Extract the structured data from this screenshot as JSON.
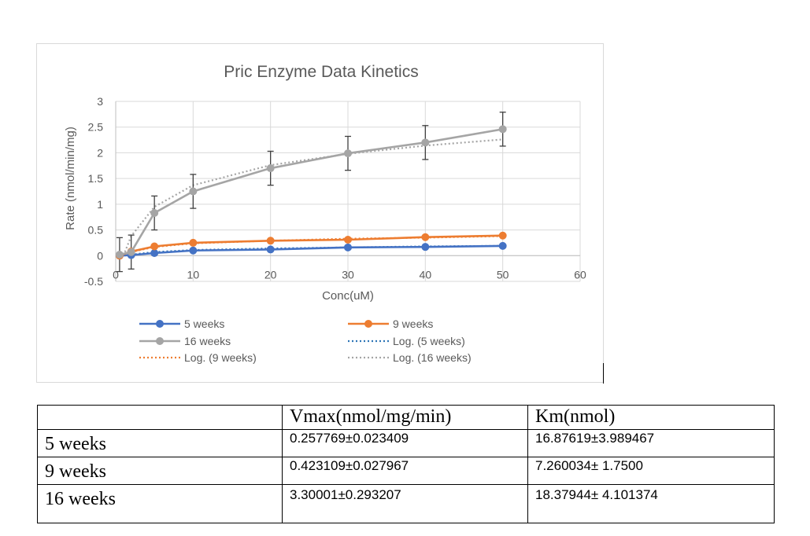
{
  "chart_data": {
    "type": "scatter",
    "title": "Pric Enzyme Data Kinetics",
    "xlabel": "Conc(uM)",
    "ylabel": "Rate (nmol/min/mg)",
    "xlim": [
      0,
      60
    ],
    "ylim": [
      -0.5,
      3
    ],
    "xticks": [
      0,
      10,
      20,
      30,
      40,
      50,
      60
    ],
    "yticks": [
      -0.5,
      0,
      0.5,
      1,
      1.5,
      2,
      2.5,
      3
    ],
    "xtick_labels": [
      "0",
      "10",
      "20",
      "30",
      "40",
      "50",
      "60"
    ],
    "ytick_labels": [
      "-0.5",
      "0",
      "0.5",
      "1",
      "1.5",
      "2",
      "2.5",
      "3"
    ],
    "grid": true,
    "legend_position": "bottom",
    "series": [
      {
        "name": "5 weeks",
        "color": "#4472c4",
        "x": [
          0.5,
          2,
          5,
          10,
          20,
          30,
          40,
          50
        ],
        "y": [
          0.0,
          0.01,
          0.05,
          0.1,
          0.12,
          0.16,
          0.17,
          0.19
        ]
      },
      {
        "name": "9 weeks",
        "color": "#ed7d31",
        "x": [
          0.5,
          2,
          5,
          10,
          20,
          30,
          40,
          50
        ],
        "y": [
          0.0,
          0.08,
          0.18,
          0.25,
          0.29,
          0.31,
          0.36,
          0.39
        ]
      },
      {
        "name": "16 weeks",
        "color": "#a5a5a5",
        "x": [
          0.5,
          2,
          5,
          10,
          20,
          30,
          40,
          50
        ],
        "y": [
          0.02,
          0.07,
          0.83,
          1.25,
          1.7,
          1.99,
          2.2,
          2.46
        ],
        "error": [
          0.33,
          0.33,
          0.33,
          0.33,
          0.33,
          0.33,
          0.33,
          0.33
        ]
      }
    ],
    "trendlines": [
      {
        "name": "Log. (5 weeks)",
        "type": "log",
        "color": "#2e75b6",
        "of": "5 weeks",
        "x": [
          2,
          5,
          10,
          20,
          30,
          40,
          50
        ],
        "y": [
          0.02,
          0.07,
          0.11,
          0.14,
          0.16,
          0.18,
          0.19
        ]
      },
      {
        "name": "Log. (9 weeks)",
        "type": "log",
        "color": "#ed7d31",
        "of": "9 weeks",
        "x": [
          2,
          5,
          10,
          20,
          30,
          40,
          50
        ],
        "y": [
          0.07,
          0.17,
          0.24,
          0.29,
          0.33,
          0.35,
          0.38
        ]
      },
      {
        "name": "Log. (16 weeks)",
        "type": "log",
        "color": "#a5a5a5",
        "of": "16 weeks",
        "x": [
          1,
          2,
          5,
          10,
          20,
          30,
          40,
          50
        ],
        "y": [
          0.0,
          0.38,
          0.95,
          1.37,
          1.76,
          1.98,
          2.14,
          2.26
        ]
      }
    ],
    "legend": [
      "5 weeks",
      "9 weeks",
      "16 weeks",
      "Log. (5 weeks)",
      "Log. (9 weeks)",
      "Log. (16 weeks)"
    ]
  },
  "table": {
    "headers": [
      "",
      "Vmax(nmol/mg/min)",
      "Km(nmol)"
    ],
    "rows": [
      [
        "5 weeks",
        "0.257769±0.023409",
        "16.87619±3.989467"
      ],
      [
        "9 weeks",
        "0.423109±0.027967",
        "7.260034± 1.7500"
      ],
      [
        "16 weeks",
        "3.30001±0.293207",
        "18.37944± 4.101374"
      ]
    ]
  }
}
